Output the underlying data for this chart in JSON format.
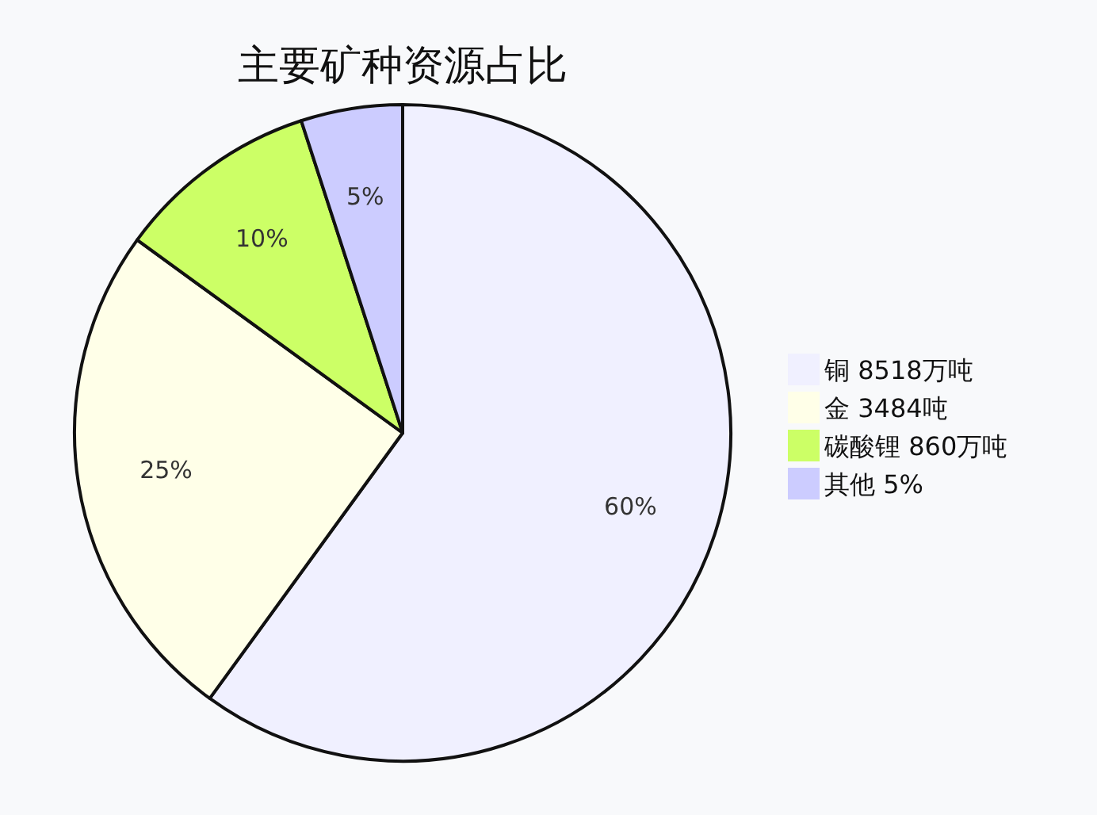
{
  "chart_data": {
    "type": "pie",
    "title": "主要矿种资源占比",
    "categories": [
      "铜 8518万吨",
      "金 3484吨",
      "碳酸锂 860万吨",
      "其他 5%"
    ],
    "values": [
      60,
      25,
      10,
      5
    ],
    "colors": [
      "#f0f0ff",
      "#ffffe8",
      "#ccff66",
      "#ccccff"
    ],
    "value_labels": [
      "60%",
      "25%",
      "10%",
      "5%"
    ],
    "legend": "right"
  }
}
